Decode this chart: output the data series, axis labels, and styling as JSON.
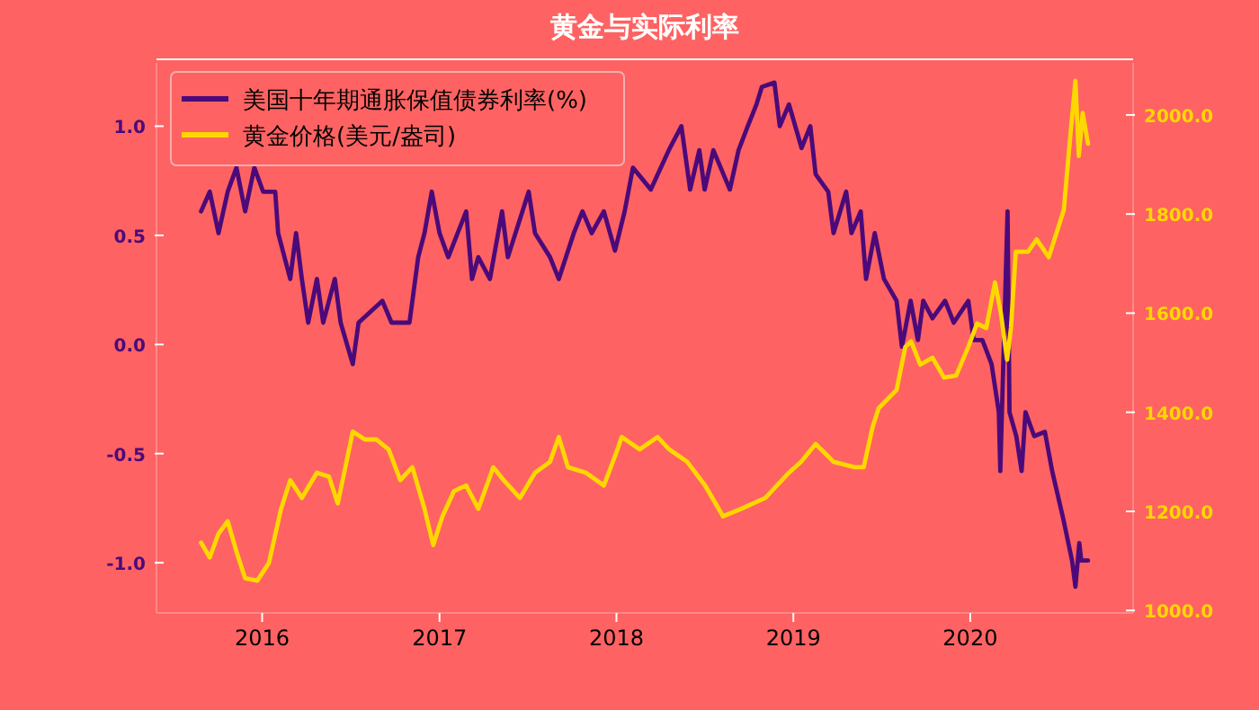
{
  "chart_data": {
    "type": "line",
    "title": "黄金与实际利率",
    "legend": "top left",
    "line_style": "solid",
    "xlim": [
      "2015-05-28",
      "2020-12-02"
    ],
    "xticks": [
      "2016",
      "2017",
      "2018",
      "2019",
      "2020"
    ],
    "ylim": [
      -1.23,
      1.29
    ],
    "yticks": [
      {
        "value": -1,
        "label": "-1.0"
      },
      {
        "value": -0.5,
        "label": "-0.5"
      },
      {
        "value": 0,
        "label": "0.0"
      },
      {
        "value": 0.5,
        "label": "0.5"
      },
      {
        "value": 1,
        "label": "1.0"
      }
    ],
    "y2lim": [
      995,
      2105
    ],
    "y2ticks": [
      {
        "value": 1000,
        "label": "1000.0"
      },
      {
        "value": 1200,
        "label": "1200.0"
      },
      {
        "value": 1400,
        "label": "1400.0"
      },
      {
        "value": 1600,
        "label": "1600.0"
      },
      {
        "value": 1800,
        "label": "1800.0"
      },
      {
        "value": 2000,
        "label": "2000.0"
      }
    ],
    "series": [
      {
        "name": "美国十年期通胀保值债券利率(%)",
        "color": "#4b0a7a",
        "x": [
          "2015-08-28",
          "2015-09-15",
          "2015-10-03",
          "2015-10-22",
          "2015-11-09",
          "2015-11-27",
          "2015-12-16",
          "2016-01-03",
          "2016-01-28",
          "2016-02-03",
          "2016-02-28",
          "2016-03-11",
          "2016-03-23",
          "2016-04-05",
          "2016-04-23",
          "2016-05-06",
          "2016-05-30",
          "2016-06-11",
          "2016-07-06",
          "2016-07-18",
          "2016-09-05",
          "2016-09-24",
          "2016-10-31",
          "2016-11-18",
          "2016-12-01",
          "2016-12-16",
          "2017-01-01",
          "2017-01-19",
          "2017-02-25",
          "2017-03-09",
          "2017-03-22",
          "2017-04-15",
          "2017-05-10",
          "2017-05-22",
          "2017-07-04",
          "2017-07-17",
          "2017-08-17",
          "2017-09-04",
          "2017-10-05",
          "2017-10-23",
          "2017-11-11",
          "2017-12-06",
          "2017-12-29",
          "2018-01-18",
          "2018-02-04",
          "2018-03-13",
          "2018-04-19",
          "2018-05-15",
          "2018-06-02",
          "2018-06-21",
          "2018-07-02",
          "2018-07-20",
          "2018-08-23",
          "2018-09-10",
          "2018-09-29",
          "2018-10-17",
          "2018-10-28",
          "2018-11-23",
          "2018-12-04",
          "2018-12-23",
          "2019-01-18",
          "2019-02-05",
          "2019-02-16",
          "2019-03-14",
          "2019-03-25",
          "2019-04-20",
          "2019-05-01",
          "2019-05-20",
          "2019-05-31",
          "2019-06-18",
          "2019-07-07",
          "2019-08-02",
          "2019-08-13",
          "2019-08-31",
          "2019-09-15",
          "2019-09-26",
          "2019-10-15",
          "2019-11-10",
          "2019-11-28",
          "2019-12-28",
          "2020-01-08",
          "2020-01-26",
          "2020-02-14",
          "2020-02-29",
          "2020-03-03",
          "2020-03-18",
          "2020-03-22",
          "2020-04-05",
          "2020-04-16",
          "2020-04-24",
          "2020-05-12",
          "2020-06-03",
          "2020-06-18",
          "2020-07-11",
          "2020-07-29",
          "2020-08-05",
          "2020-08-13",
          "2020-08-17",
          "2020-08-31"
        ],
        "values": [
          0.61,
          0.7,
          0.51,
          0.7,
          0.81,
          0.61,
          0.81,
          0.7,
          0.7,
          0.51,
          0.3,
          0.51,
          0.3,
          0.1,
          0.3,
          0.1,
          0.3,
          0.1,
          -0.09,
          0.1,
          0.2,
          0.1,
          0.1,
          0.4,
          0.51,
          0.7,
          0.51,
          0.4,
          0.61,
          0.3,
          0.4,
          0.3,
          0.61,
          0.4,
          0.7,
          0.51,
          0.4,
          0.3,
          0.51,
          0.61,
          0.51,
          0.61,
          0.43,
          0.61,
          0.81,
          0.71,
          0.89,
          1.0,
          0.71,
          0.89,
          0.71,
          0.89,
          0.71,
          0.89,
          1.0,
          1.1,
          1.18,
          1.2,
          1.0,
          1.1,
          0.9,
          1.0,
          0.78,
          0.7,
          0.51,
          0.7,
          0.51,
          0.61,
          0.3,
          0.51,
          0.3,
          0.2,
          -0.01,
          0.2,
          0.02,
          0.2,
          0.12,
          0.2,
          0.1,
          0.2,
          0.02,
          0.02,
          -0.09,
          -0.31,
          -0.58,
          0.61,
          -0.31,
          -0.42,
          -0.58,
          -0.31,
          -0.42,
          -0.4,
          -0.58,
          -0.8,
          -0.99,
          -1.11,
          -0.91,
          -0.99,
          -0.99
        ]
      },
      {
        "name": "黄金价格(美元/盎司)",
        "color": "#ffd700",
        "axis": "y2",
        "x": [
          "2015-08-28",
          "2015-09-15",
          "2015-10-03",
          "2015-10-22",
          "2015-11-09",
          "2015-11-27",
          "2015-12-22",
          "2016-01-15",
          "2016-02-09",
          "2016-02-28",
          "2016-03-23",
          "2016-04-23",
          "2016-05-18",
          "2016-06-05",
          "2016-07-06",
          "2016-07-31",
          "2016-08-24",
          "2016-09-18",
          "2016-10-12",
          "2016-11-06",
          "2016-12-01",
          "2016-12-19",
          "2017-01-07",
          "2017-01-31",
          "2017-02-25",
          "2017-03-22",
          "2017-04-22",
          "2017-05-16",
          "2017-06-16",
          "2017-07-17",
          "2017-08-17",
          "2017-09-04",
          "2017-09-23",
          "2017-10-30",
          "2017-12-06",
          "2017-12-30",
          "2018-01-12",
          "2018-02-18",
          "2018-03-27",
          "2018-04-20",
          "2018-05-27",
          "2018-07-03",
          "2018-08-09",
          "2018-09-15",
          "2018-11-04",
          "2018-12-23",
          "2019-01-17",
          "2019-02-16",
          "2019-03-25",
          "2019-05-08",
          "2019-05-26",
          "2019-06-14",
          "2019-06-26",
          "2019-08-02",
          "2019-08-20",
          "2019-09-01",
          "2019-09-20",
          "2019-10-15",
          "2019-11-08",
          "2019-12-03",
          "2019-12-28",
          "2020-01-15",
          "2020-02-03",
          "2020-02-21",
          "2020-03-04",
          "2020-03-17",
          "2020-03-25",
          "2020-04-04",
          "2020-04-29",
          "2020-05-17",
          "2020-06-11",
          "2020-07-12",
          "2020-07-24",
          "2020-08-05",
          "2020-08-12",
          "2020-08-20",
          "2020-08-31"
        ],
        "values": [
          1137,
          1107,
          1155,
          1180,
          1119,
          1065,
          1060,
          1096,
          1205,
          1263,
          1227,
          1278,
          1270,
          1216,
          1361,
          1345,
          1345,
          1325,
          1263,
          1289,
          1205,
          1132,
          1190,
          1241,
          1252,
          1205,
          1289,
          1260,
          1227,
          1278,
          1300,
          1350,
          1289,
          1278,
          1252,
          1314,
          1350,
          1325,
          1350,
          1325,
          1300,
          1252,
          1190,
          1205,
          1227,
          1278,
          1300,
          1336,
          1300,
          1289,
          1289,
          1372,
          1408,
          1445,
          1532,
          1543,
          1496,
          1510,
          1470,
          1474,
          1532,
          1579,
          1570,
          1662,
          1601,
          1506,
          1570,
          1724,
          1724,
          1749,
          1713,
          1808,
          1942,
          2069,
          1917,
          2004,
          1942
        ]
      }
    ]
  }
}
